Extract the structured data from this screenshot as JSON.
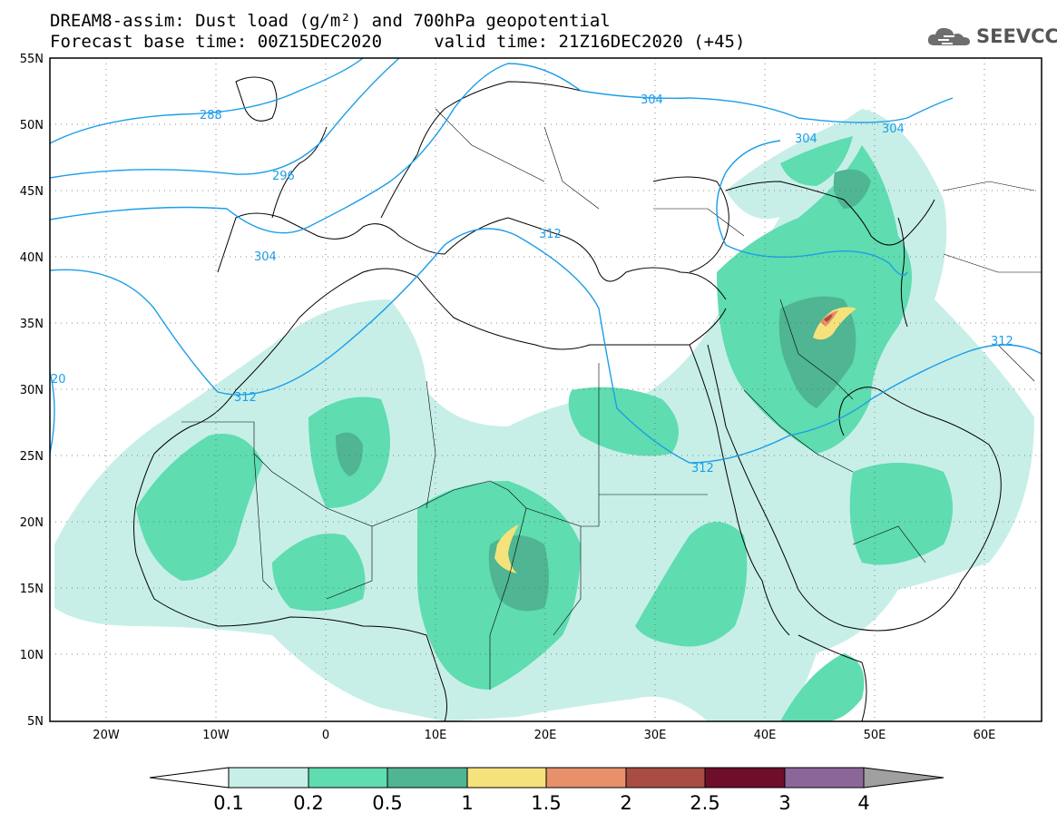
{
  "title_line1": "DREAM8-assim: Dust load (g/m²) and 700hPa geopotential",
  "title_line2": "Forecast base time: 00Z15DEC2020     valid time: 21Z16DEC2020 (+45)",
  "logo_text": "SEEVCCC",
  "lat_labels": [
    "55N",
    "50N",
    "45N",
    "40N",
    "35N",
    "30N",
    "25N",
    "20N",
    "15N",
    "10N",
    "5N"
  ],
  "lon_labels": [
    "20W",
    "10W",
    "0",
    "10E",
    "20E",
    "30E",
    "40E",
    "50E",
    "60E"
  ],
  "contour_labels": [
    "288",
    "296",
    "304",
    "304",
    "304",
    "304",
    "312",
    "312",
    "312",
    "312",
    "20"
  ],
  "colorbar": {
    "ticks": [
      "0.1",
      "0.2",
      "0.5",
      "1",
      "1.5",
      "2",
      "2.5",
      "3",
      "4"
    ],
    "colors": [
      "#c7efe8",
      "#5fdcb0",
      "#4fb593",
      "#f6e27a",
      "#e8906a",
      "#a94c43",
      "#6e0e2a",
      "#8b6799",
      "#a0a0a0"
    ]
  },
  "colors": {
    "coast": "#000000",
    "contour": "#1c9ee8",
    "dust_light": "#c7efe8",
    "dust_mid": "#5fdcb0",
    "dust_dark": "#4fb593",
    "dust_yellow": "#f6e27a",
    "dust_orange": "#e8906a",
    "dust_red": "#a94c43"
  }
}
